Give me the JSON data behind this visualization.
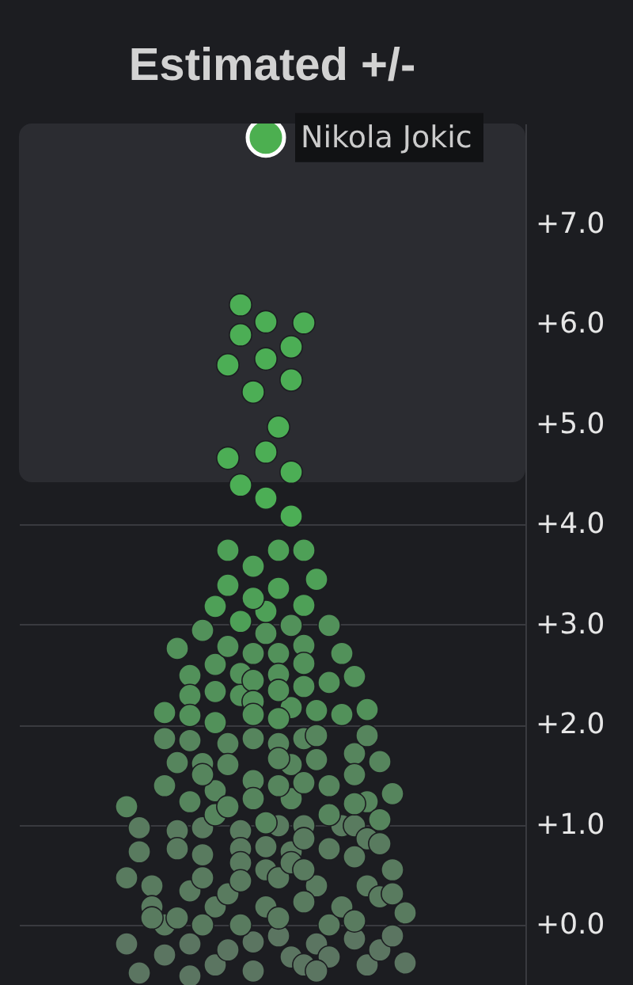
{
  "chart_data": {
    "type": "scatter",
    "title": "Estimated +/-",
    "categories": [
      null,
      null,
      null,
      null,
      null,
      null,
      null,
      null,
      null,
      null,
      null,
      null,
      null,
      null,
      null,
      null,
      null,
      null,
      null,
      null,
      null,
      null,
      null,
      null,
      null,
      null,
      null,
      null,
      null,
      null,
      null,
      null,
      null,
      null,
      null,
      null,
      null,
      null,
      null,
      null
    ],
    "ylim": [
      -0.6,
      8.0
    ],
    "yticks": [
      {
        "value": 0,
        "label": "+0.0"
      },
      {
        "value": 1,
        "label": "+1.0"
      },
      {
        "value": 2,
        "label": "+2.0"
      },
      {
        "value": 3,
        "label": "+3.0"
      },
      {
        "value": 4,
        "label": "+4.0"
      },
      {
        "value": 5,
        "label": "+5.0"
      },
      {
        "value": 6,
        "label": "+6.0"
      },
      {
        "value": 7,
        "label": "+7.0"
      }
    ],
    "grid": "y",
    "tick_labels": "y",
    "marker": "circle",
    "bands": [
      {
        "axis": "y",
        "from": 4.42,
        "to": 8.0,
        "color": "#2b2c31"
      }
    ],
    "series": [
      {
        "color": "#5b7561",
        "values": [
          null,
          null,
          null,
          null,
          null,
          null,
          null,
          null,
          -0.19,
          -0.48,
          null,
          -0.3,
          null,
          -0.19,
          null,
          -0.4,
          -0.25,
          null,
          -0.17,
          null,
          -0.11,
          -0.32,
          -0.4,
          -0.19,
          -0.32,
          null,
          -0.14,
          -0.4,
          -0.25,
          -0.11,
          -0.38,
          null,
          null,
          null,
          null,
          null,
          null,
          null,
          null,
          null
        ]
      },
      {
        "color": "#5b7561",
        "values": [
          null,
          null,
          null,
          null,
          null,
          null,
          null,
          null,
          null,
          null,
          null,
          null,
          null,
          -0.51,
          null,
          null,
          null,
          null,
          -0.46,
          null,
          null,
          null,
          null,
          -0.46,
          null,
          null,
          null,
          null,
          null,
          null,
          null,
          null,
          null,
          null,
          null,
          null,
          null,
          null,
          null,
          null
        ]
      },
      {
        "color": "#597b5f",
        "values": [
          null,
          null,
          null,
          null,
          null,
          null,
          null,
          null,
          0.47,
          0.97,
          0.39,
          0.0,
          0.94,
          0.34,
          0.97,
          0.18,
          0.31,
          0.94,
          null,
          0.78,
          0.99,
          0.73,
          0.99,
          0.39,
          0.76,
          0.99,
          0.99,
          0.86,
          0.81,
          0.55,
          0.12,
          null,
          null,
          null,
          null,
          null,
          null,
          null,
          null,
          null
        ]
      },
      {
        "color": "#597b5f",
        "values": [
          null,
          null,
          null,
          null,
          null,
          null,
          null,
          null,
          null,
          0.73,
          0.18,
          null,
          0.76,
          null,
          0.7,
          null,
          null,
          0.76,
          null,
          0.55,
          0.47,
          0.62,
          0.86,
          null,
          0.0,
          0.18,
          0.68,
          0.39,
          0.28,
          0.31,
          null,
          null,
          null,
          null,
          null,
          null,
          null,
          null,
          null,
          null
        ]
      },
      {
        "color": "#597b5f",
        "values": [
          null,
          null,
          null,
          null,
          null,
          null,
          null,
          null,
          null,
          null,
          0.07,
          null,
          0.07,
          null,
          0.47,
          null,
          null,
          0.62,
          null,
          0.18,
          0.07,
          null,
          0.55,
          null,
          null,
          null,
          0.04,
          null,
          null,
          null,
          null,
          null,
          null,
          null,
          null,
          null,
          null,
          null,
          null,
          null
        ]
      },
      {
        "color": "#597b5f",
        "values": [
          null,
          null,
          null,
          null,
          null,
          null,
          null,
          null,
          null,
          null,
          null,
          null,
          null,
          null,
          0.0,
          null,
          null,
          0.44,
          null,
          null,
          null,
          null,
          0.23,
          null,
          null,
          null,
          null,
          null,
          null,
          null,
          null,
          null,
          null,
          null,
          null,
          null,
          null,
          null,
          null,
          null
        ]
      },
      {
        "color": "#597b5f",
        "values": [
          null,
          null,
          null,
          null,
          null,
          null,
          null,
          null,
          null,
          null,
          null,
          null,
          null,
          null,
          null,
          null,
          null,
          0.0,
          null,
          null,
          null,
          null,
          null,
          null,
          null,
          null,
          null,
          null,
          null,
          null,
          null,
          null,
          null,
          null,
          null,
          null,
          null,
          null,
          null,
          null
        ]
      },
      {
        "color": "#56855d",
        "values": [
          null,
          null,
          null,
          null,
          null,
          null,
          null,
          null,
          1.18,
          null,
          null,
          1.86,
          1.62,
          1.84,
          1.61,
          1.34,
          1.81,
          null,
          1.86,
          1.02,
          1.81,
          1.6,
          1.86,
          1.89,
          1.39,
          null,
          1.71,
          1.89,
          1.63,
          1.31,
          null,
          null,
          null,
          null,
          null,
          null,
          null,
          null,
          null,
          null
        ]
      },
      {
        "color": "#56855d",
        "values": [
          null,
          null,
          null,
          null,
          null,
          null,
          null,
          null,
          null,
          null,
          null,
          1.39,
          null,
          1.23,
          1.5,
          1.1,
          1.6,
          null,
          1.44,
          null,
          1.66,
          1.26,
          1.42,
          1.65,
          1.1,
          null,
          1.5,
          1.23,
          1.05,
          null,
          null,
          null,
          null,
          null,
          null,
          null,
          null,
          null,
          null,
          null
        ]
      },
      {
        "color": "#56855d",
        "values": [
          null,
          null,
          null,
          null,
          null,
          null,
          null,
          null,
          null,
          null,
          null,
          null,
          null,
          null,
          null,
          null,
          1.18,
          null,
          1.26,
          null,
          1.39,
          null,
          null,
          null,
          null,
          null,
          1.21,
          null,
          null,
          null,
          null,
          null,
          null,
          null,
          null,
          null,
          null,
          null,
          null,
          null
        ]
      },
      {
        "color": "#52915a",
        "values": [
          null,
          null,
          null,
          null,
          null,
          null,
          null,
          null,
          null,
          null,
          null,
          2.12,
          2.76,
          2.49,
          2.94,
          2.6,
          2.78,
          2.51,
          2.71,
          2.91,
          2.71,
          2.99,
          2.79,
          2.14,
          2.99,
          2.71,
          2.48,
          2.15,
          null,
          null,
          null,
          null,
          null,
          null,
          null,
          null,
          null,
          null,
          null,
          null
        ]
      },
      {
        "color": "#52915a",
        "values": [
          null,
          null,
          null,
          null,
          null,
          null,
          null,
          null,
          null,
          null,
          null,
          null,
          null,
          2.29,
          null,
          2.33,
          null,
          2.29,
          2.44,
          null,
          2.5,
          2.17,
          2.61,
          null,
          2.42,
          2.1,
          null,
          null,
          null,
          null,
          null,
          null,
          null,
          null,
          null,
          null,
          null,
          null,
          null,
          null
        ]
      },
      {
        "color": "#52915a",
        "values": [
          null,
          null,
          null,
          null,
          null,
          null,
          null,
          null,
          null,
          null,
          null,
          null,
          null,
          2.09,
          null,
          2.02,
          null,
          null,
          2.23,
          null,
          2.34,
          null,
          2.38,
          null,
          null,
          null,
          null,
          null,
          null,
          null,
          null,
          null,
          null,
          null,
          null,
          null,
          null,
          null,
          null,
          null
        ]
      },
      {
        "color": "#52915a",
        "values": [
          null,
          null,
          null,
          null,
          null,
          null,
          null,
          null,
          null,
          null,
          null,
          null,
          null,
          null,
          null,
          null,
          null,
          null,
          2.1,
          null,
          2.06,
          null,
          null,
          null,
          null,
          null,
          null,
          null,
          null,
          null,
          null,
          null,
          null,
          null,
          null,
          null,
          null,
          null,
          null,
          null
        ]
      },
      {
        "color": "#4ea057",
        "values": [
          null,
          null,
          null,
          null,
          null,
          null,
          null,
          null,
          null,
          null,
          null,
          null,
          null,
          null,
          null,
          3.18,
          3.74,
          3.03,
          3.58,
          3.13,
          3.74,
          null,
          3.74,
          3.45,
          null,
          null,
          null,
          null,
          null,
          null,
          null,
          null,
          null,
          null,
          null,
          null,
          null,
          null,
          null,
          null
        ]
      },
      {
        "color": "#4ea057",
        "values": [
          null,
          null,
          null,
          null,
          null,
          null,
          null,
          null,
          null,
          null,
          null,
          null,
          null,
          null,
          null,
          null,
          3.39,
          null,
          3.26,
          null,
          3.36,
          null,
          3.19,
          null,
          null,
          null,
          null,
          null,
          null,
          null,
          null,
          null,
          null,
          null,
          null,
          null,
          null,
          null,
          null,
          null
        ]
      },
      {
        "color": "#4cae55",
        "values": [
          null,
          null,
          null,
          null,
          null,
          null,
          null,
          null,
          null,
          null,
          null,
          null,
          null,
          null,
          null,
          null,
          5.59,
          6.19,
          5.32,
          6.02,
          4.97,
          5.77,
          6.01,
          null,
          null,
          null,
          null,
          null,
          null,
          null,
          null,
          null,
          null,
          null,
          null,
          null,
          null,
          null,
          null,
          null
        ]
      },
      {
        "color": "#4cae55",
        "values": [
          null,
          null,
          null,
          null,
          null,
          null,
          null,
          null,
          null,
          null,
          null,
          null,
          null,
          null,
          null,
          null,
          4.66,
          5.89,
          null,
          5.65,
          null,
          5.44,
          null,
          null,
          null,
          null,
          null,
          null,
          null,
          null,
          null,
          null,
          null,
          null,
          null,
          null,
          null,
          null,
          null,
          null
        ]
      },
      {
        "color": "#4cae55",
        "values": [
          null,
          null,
          null,
          null,
          null,
          null,
          null,
          null,
          null,
          null,
          null,
          null,
          null,
          null,
          null,
          null,
          null,
          4.39,
          null,
          4.72,
          null,
          4.52,
          null,
          null,
          null,
          null,
          null,
          null,
          null,
          null,
          null,
          null,
          null,
          null,
          null,
          null,
          null,
          null,
          null,
          null
        ]
      },
      {
        "color": "#4cae55",
        "values": [
          null,
          null,
          null,
          null,
          null,
          null,
          null,
          null,
          null,
          null,
          null,
          null,
          null,
          null,
          null,
          null,
          null,
          null,
          null,
          4.26,
          null,
          4.08,
          null,
          null,
          null,
          null,
          null,
          null,
          null,
          null,
          null,
          null,
          null,
          null,
          null,
          null,
          null,
          null,
          null,
          null
        ]
      },
      {
        "name": "Nikola Jokic",
        "color": "#4caf50",
        "values": [
          null,
          null,
          null,
          null,
          null,
          null,
          null,
          null,
          null,
          null,
          null,
          null,
          null,
          null,
          null,
          null,
          null,
          null,
          null,
          7.86,
          null,
          null,
          null,
          null,
          null,
          null,
          null,
          null,
          null,
          null,
          null,
          null,
          null,
          null,
          null,
          null,
          null,
          null,
          null,
          null
        ]
      }
    ]
  }
}
